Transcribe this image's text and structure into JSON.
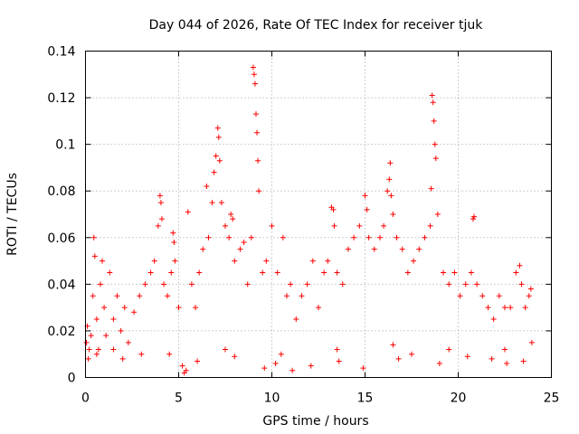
{
  "chart_data": {
    "type": "scatter",
    "title": "Day 044 of 2026, Rate Of TEC Index for receiver tjuk",
    "xlabel": "GPS time / hours",
    "ylabel": "ROTI / TECUs",
    "xlim": [
      0,
      25
    ],
    "ylim": [
      0,
      0.14
    ],
    "xticks": [
      0,
      5,
      10,
      15,
      20,
      25
    ],
    "yticks": [
      0,
      0.02,
      0.04,
      0.06,
      0.08,
      0.1,
      0.12,
      0.14
    ],
    "xtick_labels": [
      "0",
      "5",
      "10",
      "15",
      "20",
      "25"
    ],
    "ytick_labels": [
      "0",
      "0.02",
      "0.04",
      "0.06",
      "0.08",
      "0.1",
      "0.12",
      "0.14"
    ],
    "grid": true,
    "marker": "plus",
    "color": "#ff0000",
    "series": [
      {
        "name": "ROTI",
        "points": [
          [
            0.05,
            0.015
          ],
          [
            0.1,
            0.022
          ],
          [
            0.15,
            0.008
          ],
          [
            0.2,
            0.012
          ],
          [
            0.3,
            0.018
          ],
          [
            0.4,
            0.035
          ],
          [
            0.45,
            0.06
          ],
          [
            0.5,
            0.052
          ],
          [
            0.6,
            0.025
          ],
          [
            0.7,
            0.012
          ],
          [
            0.8,
            0.04
          ],
          [
            0.9,
            0.05
          ],
          [
            1.0,
            0.03
          ],
          [
            1.1,
            0.018
          ],
          [
            1.3,
            0.045
          ],
          [
            1.5,
            0.025
          ],
          [
            1.7,
            0.035
          ],
          [
            1.9,
            0.02
          ],
          [
            2.1,
            0.03
          ],
          [
            2.3,
            0.015
          ],
          [
            2.6,
            0.028
          ],
          [
            2.9,
            0.035
          ],
          [
            3.2,
            0.04
          ],
          [
            3.5,
            0.045
          ],
          [
            3.7,
            0.05
          ],
          [
            3.9,
            0.065
          ],
          [
            4.0,
            0.078
          ],
          [
            4.05,
            0.075
          ],
          [
            4.1,
            0.068
          ],
          [
            4.2,
            0.04
          ],
          [
            4.4,
            0.035
          ],
          [
            4.6,
            0.045
          ],
          [
            4.7,
            0.062
          ],
          [
            4.75,
            0.058
          ],
          [
            4.8,
            0.05
          ],
          [
            5.0,
            0.03
          ],
          [
            5.2,
            0.005
          ],
          [
            5.3,
            0.002
          ],
          [
            5.4,
            0.003
          ],
          [
            5.5,
            0.071
          ],
          [
            5.7,
            0.04
          ],
          [
            5.9,
            0.03
          ],
          [
            6.1,
            0.045
          ],
          [
            6.3,
            0.055
          ],
          [
            6.5,
            0.082
          ],
          [
            6.6,
            0.06
          ],
          [
            6.8,
            0.075
          ],
          [
            6.9,
            0.088
          ],
          [
            7.0,
            0.095
          ],
          [
            7.1,
            0.107
          ],
          [
            7.15,
            0.103
          ],
          [
            7.2,
            0.093
          ],
          [
            7.3,
            0.075
          ],
          [
            7.5,
            0.065
          ],
          [
            7.7,
            0.06
          ],
          [
            7.8,
            0.07
          ],
          [
            7.9,
            0.068
          ],
          [
            8.0,
            0.05
          ],
          [
            8.3,
            0.055
          ],
          [
            8.5,
            0.058
          ],
          [
            8.7,
            0.04
          ],
          [
            8.9,
            0.06
          ],
          [
            9.0,
            0.133
          ],
          [
            9.05,
            0.13
          ],
          [
            9.1,
            0.126
          ],
          [
            9.15,
            0.113
          ],
          [
            9.2,
            0.105
          ],
          [
            9.25,
            0.093
          ],
          [
            9.3,
            0.08
          ],
          [
            9.5,
            0.045
          ],
          [
            9.7,
            0.05
          ],
          [
            10.0,
            0.065
          ],
          [
            10.3,
            0.045
          ],
          [
            10.6,
            0.06
          ],
          [
            10.8,
            0.035
          ],
          [
            11.0,
            0.04
          ],
          [
            11.3,
            0.025
          ],
          [
            11.6,
            0.035
          ],
          [
            11.9,
            0.04
          ],
          [
            12.2,
            0.05
          ],
          [
            12.5,
            0.03
          ],
          [
            12.8,
            0.045
          ],
          [
            13.0,
            0.05
          ],
          [
            13.2,
            0.073
          ],
          [
            13.3,
            0.072
          ],
          [
            13.35,
            0.065
          ],
          [
            13.5,
            0.045
          ],
          [
            13.8,
            0.04
          ],
          [
            14.1,
            0.055
          ],
          [
            14.4,
            0.06
          ],
          [
            14.7,
            0.065
          ],
          [
            15.0,
            0.078
          ],
          [
            15.1,
            0.072
          ],
          [
            15.2,
            0.06
          ],
          [
            15.5,
            0.055
          ],
          [
            15.8,
            0.06
          ],
          [
            16.0,
            0.065
          ],
          [
            16.2,
            0.08
          ],
          [
            16.3,
            0.085
          ],
          [
            16.35,
            0.092
          ],
          [
            16.4,
            0.078
          ],
          [
            16.5,
            0.07
          ],
          [
            16.7,
            0.06
          ],
          [
            17.0,
            0.055
          ],
          [
            17.3,
            0.045
          ],
          [
            17.6,
            0.05
          ],
          [
            17.9,
            0.055
          ],
          [
            18.2,
            0.06
          ],
          [
            18.5,
            0.065
          ],
          [
            18.55,
            0.081
          ],
          [
            18.6,
            0.121
          ],
          [
            18.65,
            0.118
          ],
          [
            18.7,
            0.11
          ],
          [
            18.75,
            0.1
          ],
          [
            18.8,
            0.094
          ],
          [
            18.9,
            0.07
          ],
          [
            19.2,
            0.045
          ],
          [
            19.5,
            0.04
          ],
          [
            19.8,
            0.045
          ],
          [
            20.1,
            0.035
          ],
          [
            20.4,
            0.04
          ],
          [
            20.7,
            0.045
          ],
          [
            20.8,
            0.068
          ],
          [
            20.85,
            0.069
          ],
          [
            21.0,
            0.04
          ],
          [
            21.3,
            0.035
          ],
          [
            21.6,
            0.03
          ],
          [
            21.9,
            0.025
          ],
          [
            22.2,
            0.035
          ],
          [
            22.5,
            0.03
          ],
          [
            22.8,
            0.03
          ],
          [
            23.1,
            0.045
          ],
          [
            23.3,
            0.048
          ],
          [
            23.4,
            0.04
          ],
          [
            23.6,
            0.03
          ],
          [
            23.8,
            0.035
          ],
          [
            23.9,
            0.038
          ],
          [
            23.95,
            0.015
          ],
          [
            0.6,
            0.01
          ],
          [
            2.0,
            0.008
          ],
          [
            3.0,
            0.01
          ],
          [
            6.0,
            0.007
          ],
          [
            8.0,
            0.009
          ],
          [
            9.6,
            0.004
          ],
          [
            10.2,
            0.006
          ],
          [
            11.1,
            0.003
          ],
          [
            12.1,
            0.005
          ],
          [
            13.6,
            0.007
          ],
          [
            14.9,
            0.004
          ],
          [
            16.8,
            0.008
          ],
          [
            17.5,
            0.01
          ],
          [
            19.0,
            0.006
          ],
          [
            20.5,
            0.009
          ],
          [
            21.8,
            0.008
          ],
          [
            22.6,
            0.006
          ],
          [
            23.5,
            0.007
          ],
          [
            1.5,
            0.012
          ],
          [
            4.5,
            0.01
          ],
          [
            7.5,
            0.012
          ],
          [
            10.5,
            0.01
          ],
          [
            13.5,
            0.012
          ],
          [
            16.5,
            0.014
          ],
          [
            19.5,
            0.012
          ],
          [
            22.5,
            0.012
          ]
        ]
      }
    ]
  }
}
